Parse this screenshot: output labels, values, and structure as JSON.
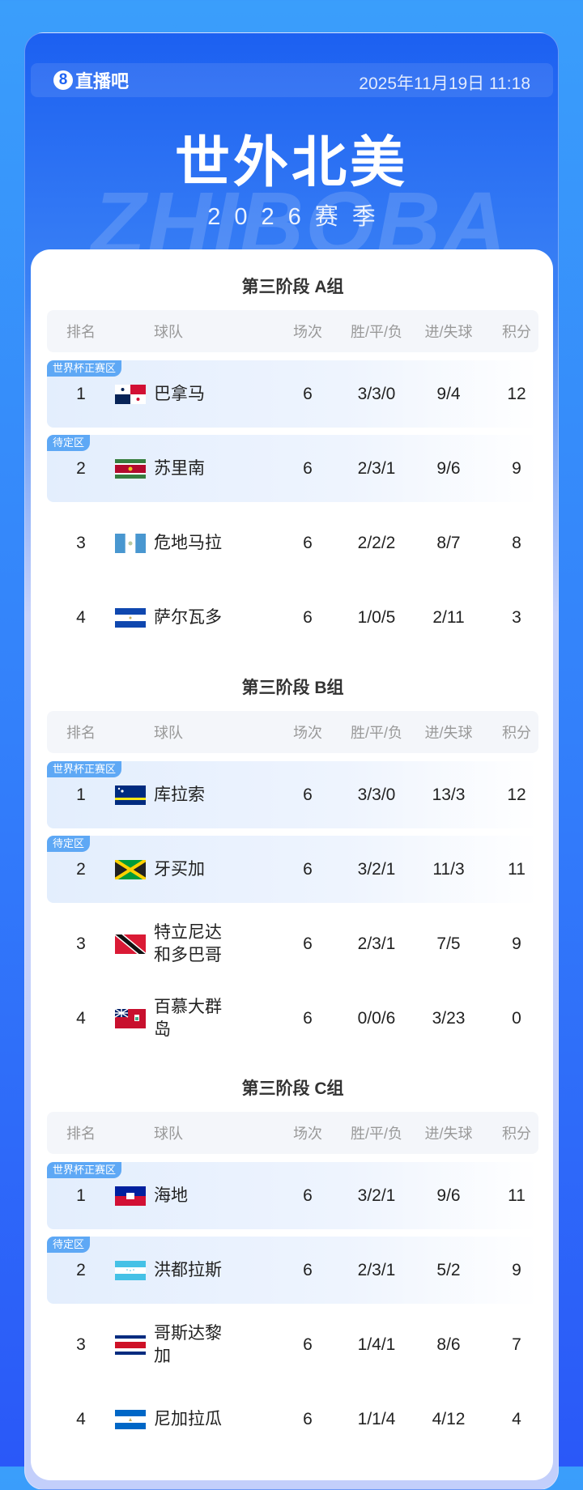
{
  "header": {
    "logo_mark": "8",
    "logo_text": "直播吧",
    "date": "2025年11月19日 11:18"
  },
  "title": "世外北美",
  "season": "2026赛季",
  "watermark": "ZHIBOBA",
  "columns": {
    "rank": "排名",
    "team": "球队",
    "played": "场次",
    "wdl": "胜/平/负",
    "goals": "进/失球",
    "points": "积分"
  },
  "colors": {
    "badge": "#5ea8f5",
    "highlight": "#e3eefd"
  },
  "groups": [
    {
      "title": "第三阶段 A组",
      "rows": [
        {
          "rank": "1",
          "flag": "panama-flag",
          "team": "巴拿马",
          "played": "6",
          "wdl": "3/3/0",
          "goals": "9/4",
          "points": "12",
          "badge": "世界杯正赛区"
        },
        {
          "rank": "2",
          "flag": "suriname-flag",
          "team": "苏里南",
          "played": "6",
          "wdl": "2/3/1",
          "goals": "9/6",
          "points": "9",
          "badge": "待定区"
        },
        {
          "rank": "3",
          "flag": "guatemala-flag",
          "team": "危地马拉",
          "played": "6",
          "wdl": "2/2/2",
          "goals": "8/7",
          "points": "8"
        },
        {
          "rank": "4",
          "flag": "el-salvador-flag",
          "team": "萨尔瓦多",
          "played": "6",
          "wdl": "1/0/5",
          "goals": "2/11",
          "points": "3"
        }
      ]
    },
    {
      "title": "第三阶段 B组",
      "rows": [
        {
          "rank": "1",
          "flag": "curacao-flag",
          "team": "库拉索",
          "played": "6",
          "wdl": "3/3/0",
          "goals": "13/3",
          "points": "12",
          "badge": "世界杯正赛区"
        },
        {
          "rank": "2",
          "flag": "jamaica-flag",
          "team": "牙买加",
          "played": "6",
          "wdl": "3/2/1",
          "goals": "11/3",
          "points": "11",
          "badge": "待定区"
        },
        {
          "rank": "3",
          "flag": "trinidad-tobago-flag",
          "team": "特立尼达和多巴哥",
          "played": "6",
          "wdl": "2/3/1",
          "goals": "7/5",
          "points": "9"
        },
        {
          "rank": "4",
          "flag": "bermuda-flag",
          "team": "百慕大群岛",
          "played": "6",
          "wdl": "0/0/6",
          "goals": "3/23",
          "points": "0"
        }
      ]
    },
    {
      "title": "第三阶段 C组",
      "rows": [
        {
          "rank": "1",
          "flag": "haiti-flag",
          "team": "海地",
          "played": "6",
          "wdl": "3/2/1",
          "goals": "9/6",
          "points": "11",
          "badge": "世界杯正赛区"
        },
        {
          "rank": "2",
          "flag": "honduras-flag",
          "team": "洪都拉斯",
          "played": "6",
          "wdl": "2/3/1",
          "goals": "5/2",
          "points": "9",
          "badge": "待定区"
        },
        {
          "rank": "3",
          "flag": "costa-rica-flag",
          "team": "哥斯达黎加",
          "played": "6",
          "wdl": "1/4/1",
          "goals": "8/6",
          "points": "7"
        },
        {
          "rank": "4",
          "flag": "nicaragua-flag",
          "team": "尼加拉瓜",
          "played": "6",
          "wdl": "1/1/4",
          "goals": "4/12",
          "points": "4"
        }
      ]
    }
  ]
}
